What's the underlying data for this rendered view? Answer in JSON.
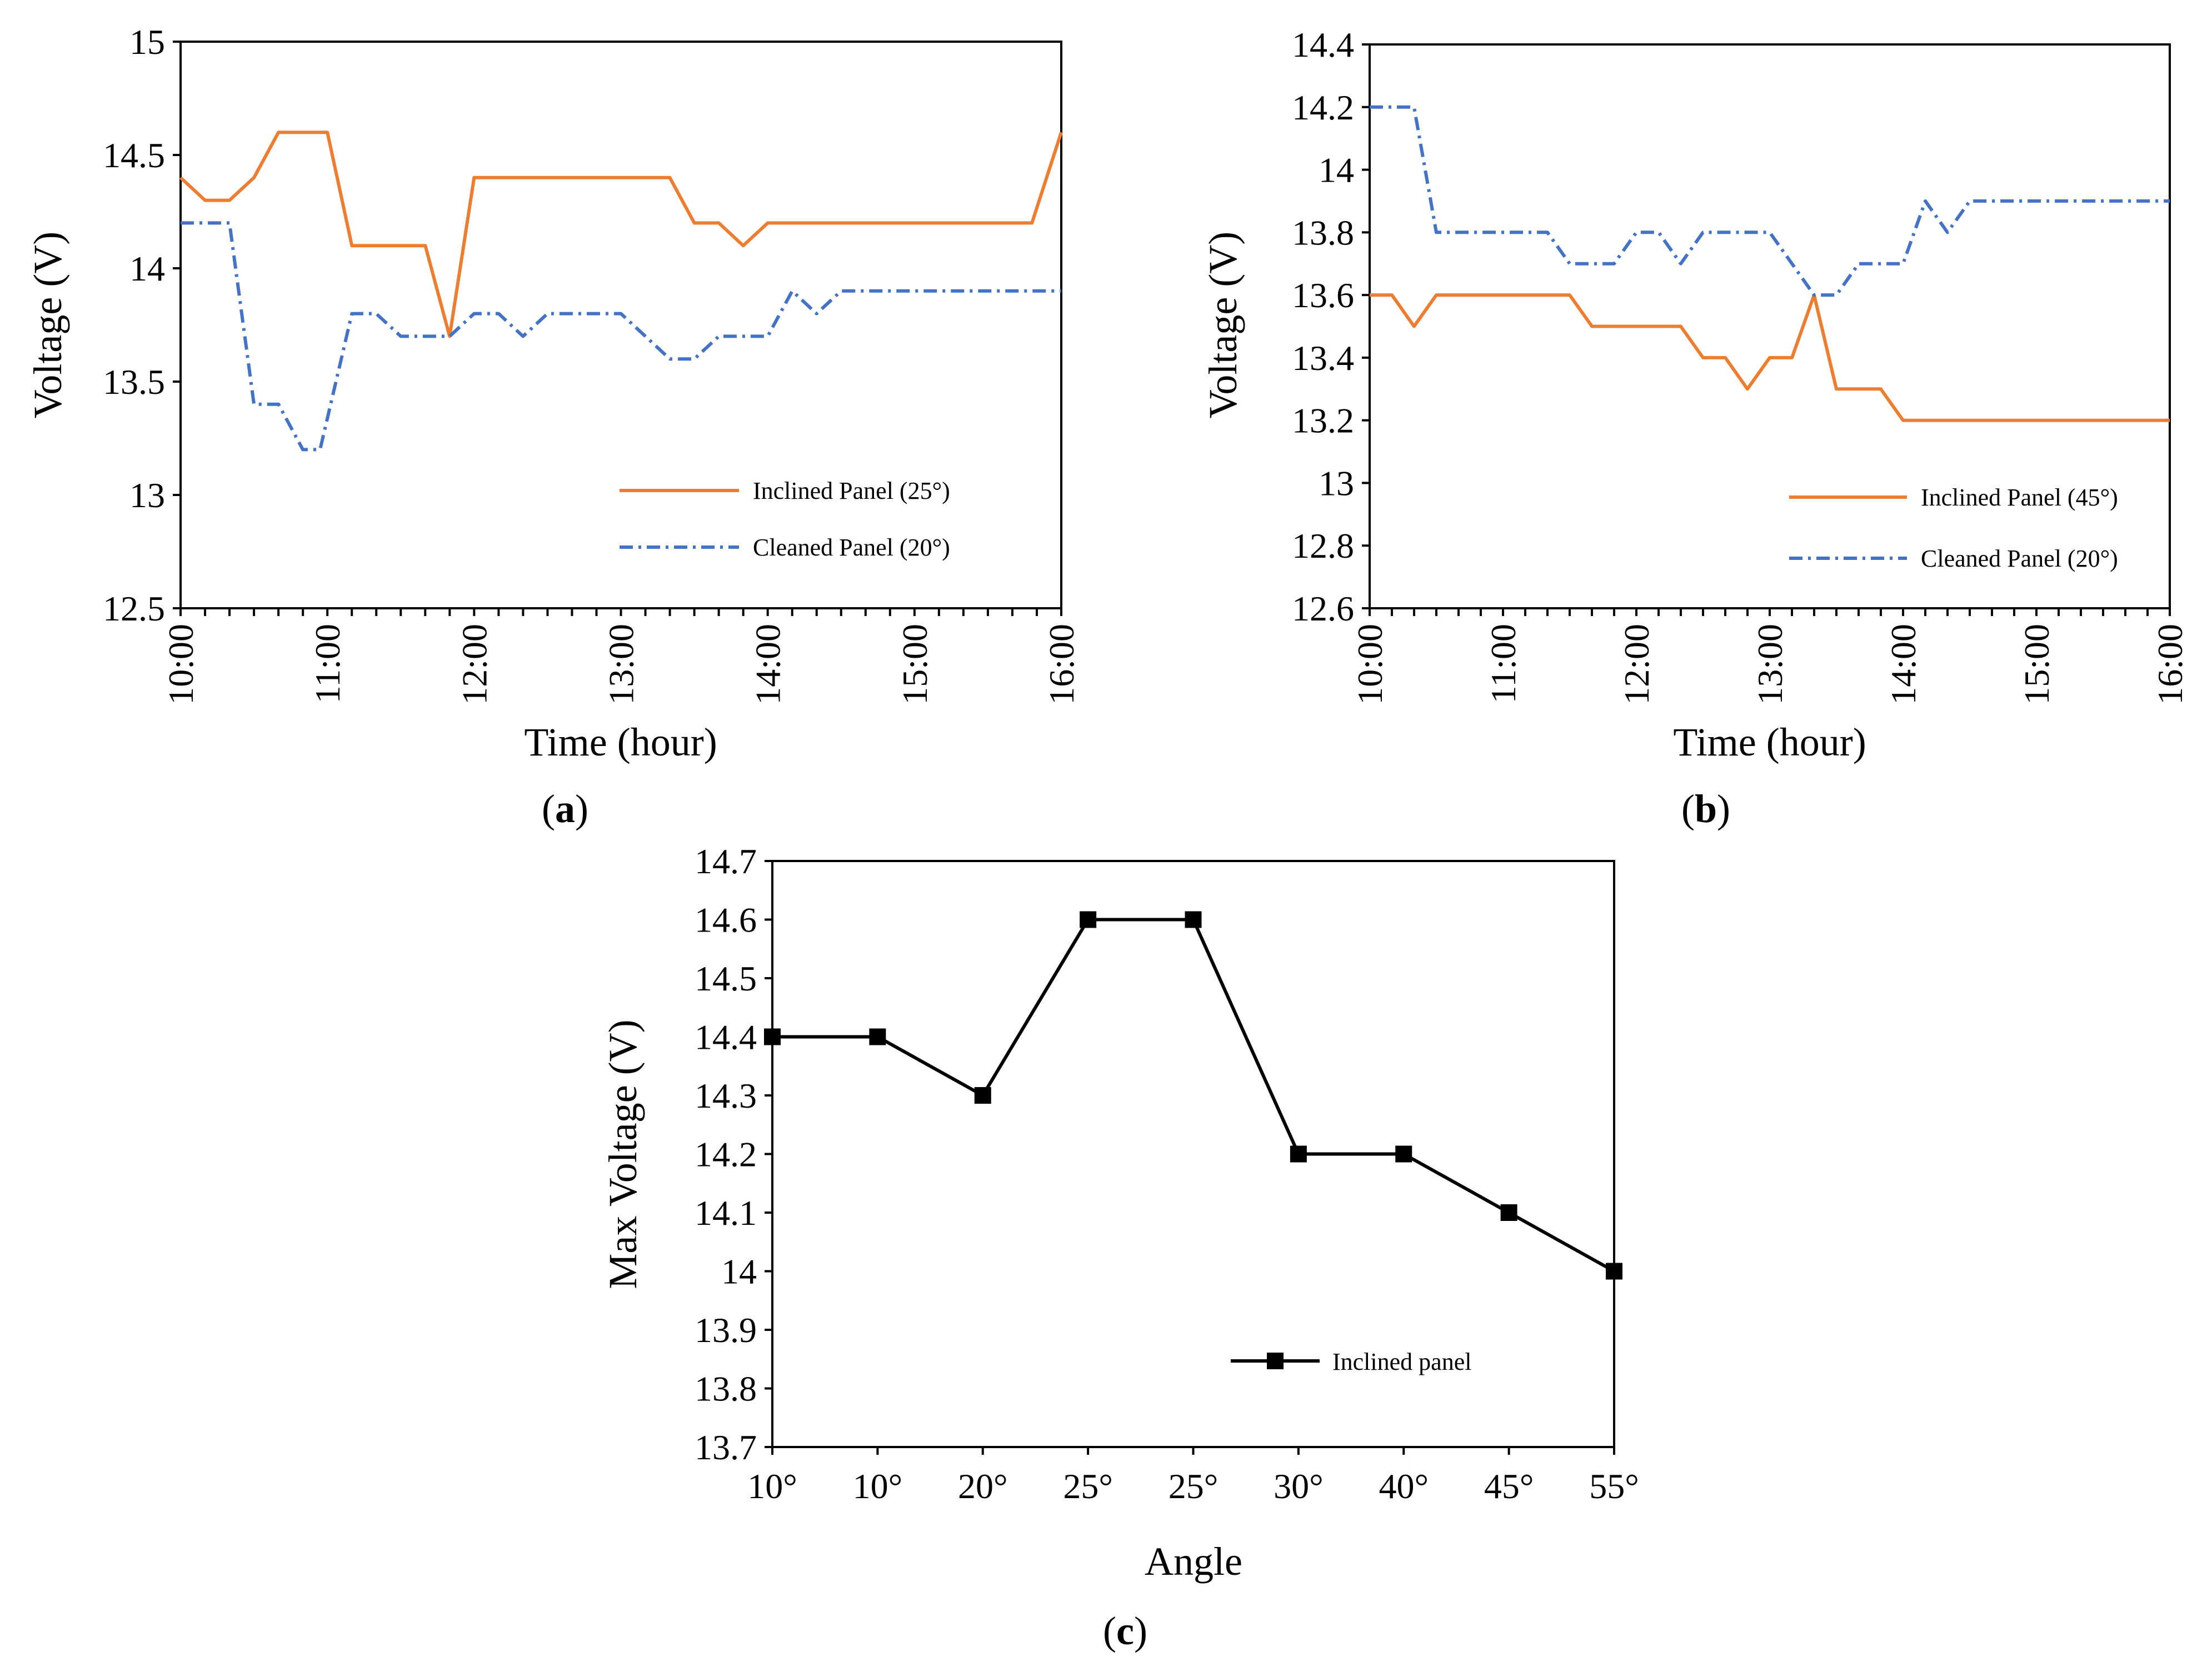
{
  "colors": {
    "inclined_a": "#ED7D31",
    "cleaned": "#4472C4",
    "inclined_c": "#000000"
  },
  "chart_data": [
    {
      "id": "a",
      "panel_label": "a",
      "type": "line",
      "xlabel": "Time (hour)",
      "ylabel": "Voltage (V)",
      "ylim": [
        12.5,
        15
      ],
      "yticks": [
        "12.5",
        "13",
        "13.5",
        "14",
        "14.5",
        "15"
      ],
      "ytick_values": [
        12.5,
        13,
        13.5,
        14,
        14.5,
        15
      ],
      "xlim": [
        10,
        16
      ],
      "xticks": [
        "10:00",
        "11:00",
        "12:00",
        "13:00",
        "14:00",
        "15:00",
        "16:00"
      ],
      "xtick_values": [
        10,
        11,
        12,
        13,
        14,
        15,
        16
      ],
      "minor_ticks_per_hour": 6,
      "grid": false,
      "legend_position": "lower-right",
      "series": [
        {
          "name": "Inclined Panel (25°)",
          "style": "solid",
          "color": "#ED7D31",
          "x": [
            10,
            10.167,
            10.333,
            10.5,
            10.667,
            10.833,
            11,
            11.167,
            11.333,
            11.5,
            11.667,
            11.833,
            12,
            12.167,
            12.333,
            12.5,
            12.667,
            12.833,
            13,
            13.167,
            13.333,
            13.5,
            13.667,
            13.833,
            14,
            14.167,
            14.333,
            14.5,
            14.667,
            14.833,
            15,
            15.167,
            15.333,
            15.5,
            15.8,
            16
          ],
          "y": [
            14.4,
            14.3,
            14.3,
            14.4,
            14.6,
            14.6,
            14.6,
            14.1,
            14.1,
            14.1,
            14.1,
            13.7,
            14.4,
            14.4,
            14.4,
            14.4,
            14.4,
            14.4,
            14.4,
            14.4,
            14.4,
            14.2,
            14.2,
            14.1,
            14.2,
            14.2,
            14.2,
            14.2,
            14.2,
            14.2,
            14.2,
            14.2,
            14.2,
            14.2,
            14.2,
            14.6
          ]
        },
        {
          "name": "Cleaned Panel (20°)",
          "style": "dash-dot",
          "color": "#4472C4",
          "x": [
            10,
            10.167,
            10.333,
            10.5,
            10.667,
            10.833,
            10.95,
            11.167,
            11.333,
            11.5,
            11.667,
            11.833,
            12,
            12.167,
            12.333,
            12.5,
            12.667,
            12.833,
            13,
            13.167,
            13.333,
            13.5,
            13.667,
            13.833,
            14,
            14.167,
            14.333,
            14.5,
            14.667,
            14.833,
            15,
            15.167,
            15.333,
            15.5,
            15.8,
            16
          ],
          "y": [
            14.2,
            14.2,
            14.2,
            13.4,
            13.4,
            13.2,
            13.2,
            13.8,
            13.8,
            13.7,
            13.7,
            13.7,
            13.8,
            13.8,
            13.7,
            13.8,
            13.8,
            13.8,
            13.8,
            13.7,
            13.6,
            13.6,
            13.7,
            13.7,
            13.7,
            13.9,
            13.8,
            13.9,
            13.9,
            13.9,
            13.9,
            13.9,
            13.9,
            13.9,
            13.9,
            13.9
          ]
        }
      ]
    },
    {
      "id": "b",
      "panel_label": "b",
      "type": "line",
      "xlabel": "Time (hour)",
      "ylabel": "Voltage (V)",
      "ylim": [
        12.6,
        14.4
      ],
      "yticks": [
        "12.6",
        "12.8",
        "13",
        "13.2",
        "13.4",
        "13.6",
        "13.8",
        "14",
        "14.2",
        "14.4"
      ],
      "ytick_values": [
        12.6,
        12.8,
        13,
        13.2,
        13.4,
        13.6,
        13.8,
        14,
        14.2,
        14.4
      ],
      "xlim": [
        10,
        16
      ],
      "xticks": [
        "10:00",
        "11:00",
        "12:00",
        "13:00",
        "14:00",
        "15:00",
        "16:00"
      ],
      "xtick_values": [
        10,
        11,
        12,
        13,
        14,
        15,
        16
      ],
      "minor_ticks_per_hour": 6,
      "grid": false,
      "legend_position": "lower-right",
      "series": [
        {
          "name": "Inclined Panel (45°)",
          "style": "solid",
          "color": "#ED7D31",
          "x": [
            10,
            10.167,
            10.333,
            10.5,
            10.667,
            10.833,
            11,
            11.167,
            11.333,
            11.5,
            11.667,
            11.833,
            12,
            12.167,
            12.333,
            12.5,
            12.667,
            12.833,
            13,
            13.167,
            13.333,
            13.5,
            13.667,
            13.833,
            14,
            14.167,
            14.333,
            14.5,
            14.667,
            14.833,
            15,
            15.167,
            15.333,
            15.5,
            15.8,
            16
          ],
          "y": [
            13.6,
            13.6,
            13.5,
            13.6,
            13.6,
            13.6,
            13.6,
            13.6,
            13.6,
            13.6,
            13.5,
            13.5,
            13.5,
            13.5,
            13.5,
            13.4,
            13.4,
            13.3,
            13.4,
            13.4,
            13.6,
            13.3,
            13.3,
            13.3,
            13.2,
            13.2,
            13.2,
            13.2,
            13.2,
            13.2,
            13.2,
            13.2,
            13.2,
            13.2,
            13.2,
            13.2
          ]
        },
        {
          "name": "Cleaned Panel (20°)",
          "style": "dash-dot",
          "color": "#4472C4",
          "x": [
            10,
            10.167,
            10.333,
            10.5,
            10.667,
            10.833,
            11,
            11.167,
            11.333,
            11.5,
            11.667,
            11.833,
            12,
            12.167,
            12.333,
            12.5,
            12.667,
            12.833,
            13,
            13.167,
            13.333,
            13.5,
            13.667,
            13.833,
            14,
            14.167,
            14.333,
            14.5,
            14.667,
            14.833,
            15,
            15.167,
            15.333,
            15.5,
            15.8,
            16
          ],
          "y": [
            14.2,
            14.2,
            14.2,
            13.8,
            13.8,
            13.8,
            13.8,
            13.8,
            13.8,
            13.7,
            13.7,
            13.7,
            13.8,
            13.8,
            13.7,
            13.8,
            13.8,
            13.8,
            13.8,
            13.7,
            13.6,
            13.6,
            13.7,
            13.7,
            13.7,
            13.9,
            13.8,
            13.9,
            13.9,
            13.9,
            13.9,
            13.9,
            13.9,
            13.9,
            13.9,
            13.9
          ]
        }
      ]
    },
    {
      "id": "c",
      "panel_label": "c",
      "type": "line",
      "xlabel": "Angle",
      "ylabel": "Max Voltage (V)",
      "ylim": [
        13.7,
        14.7
      ],
      "yticks": [
        "13.7",
        "13.8",
        "13.9",
        "14",
        "14.1",
        "14.2",
        "14.3",
        "14.4",
        "14.5",
        "14.6",
        "14.7"
      ],
      "ytick_values": [
        13.7,
        13.8,
        13.9,
        14,
        14.1,
        14.2,
        14.3,
        14.4,
        14.5,
        14.6,
        14.7
      ],
      "categories": [
        "10°",
        "10°",
        "20°",
        "25°",
        "25°",
        "30°",
        "40°",
        "45°",
        "55°"
      ],
      "grid": false,
      "legend_position": "lower-right",
      "series": [
        {
          "name": "Inclined panel",
          "style": "solid-square-marker",
          "color": "#000000",
          "values": [
            14.4,
            14.4,
            14.3,
            14.6,
            14.6,
            14.2,
            14.2,
            14.1,
            14.0
          ]
        }
      ]
    }
  ]
}
